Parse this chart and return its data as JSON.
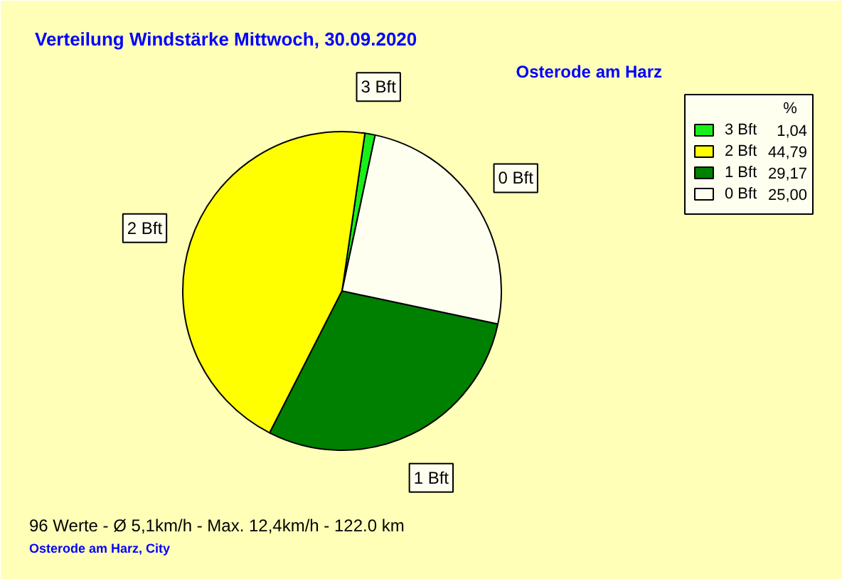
{
  "chart_data": {
    "type": "pie",
    "title": "Verteilung Windstärke  Mittwoch, 30.09.2020",
    "subtitle": "Osterode am Harz",
    "categories": [
      "3 Bft",
      "2 Bft",
      "1 Bft",
      "0 Bft"
    ],
    "values": [
      1.04,
      44.79,
      29.17,
      25.0
    ],
    "colors": [
      "#19f019",
      "#ffff00",
      "#008000",
      "#fffff0"
    ],
    "value_labels": [
      "1,04",
      "44,79",
      "29,17",
      "25,00"
    ],
    "legend_title": "%",
    "legend": "top right",
    "annotations": [
      "96 Werte   -   Ø 5,1km/h  -  Max. 12,4km/h   -   122.0 km",
      "Osterode am Harz, City"
    ]
  }
}
